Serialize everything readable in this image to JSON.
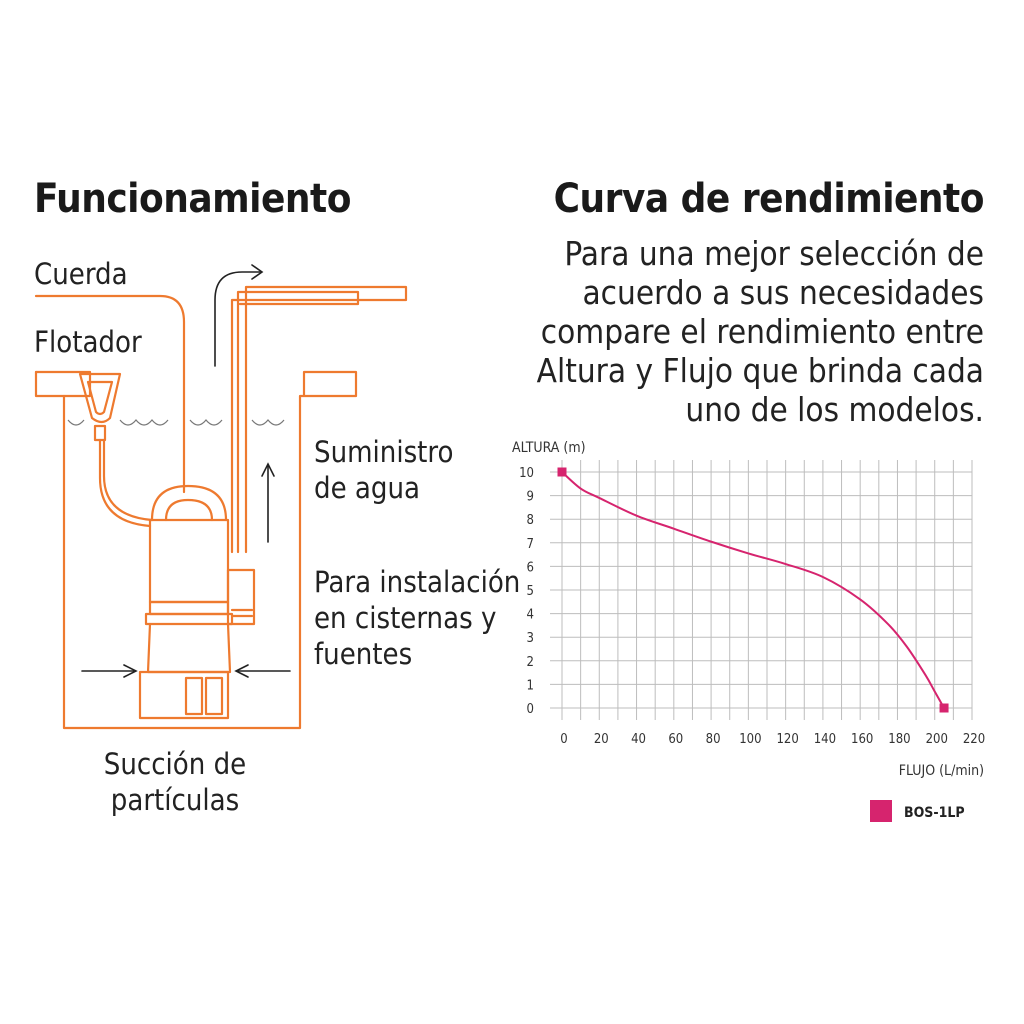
{
  "left": {
    "title": "Funcionamiento",
    "labels": {
      "cuerda": "Cuerda",
      "flotador": "Flotador",
      "suministro": [
        "Suministro",
        "de agua"
      ],
      "instalacion": [
        "Para instalación",
        "en cisternas y",
        "fuentes"
      ],
      "succion": [
        "Succión de",
        "partículas"
      ]
    }
  },
  "right": {
    "title": "Curva de rendimiento",
    "description": [
      "Para una mejor selección de",
      "acuerdo a sus necesidades",
      "compare el rendimiento entre",
      "Altura y Flujo que brinda cada",
      "uno de los modelos."
    ]
  },
  "colors": {
    "outline": "#ee7a2f",
    "curve": "#d6246e",
    "grid": "#bdbdbd"
  },
  "chart_data": {
    "type": "line",
    "ylabel": "ALTURA (m)",
    "xlabel": "FLUJO (L/min)",
    "xlim": [
      0,
      220
    ],
    "ylim": [
      0,
      10
    ],
    "x_ticks": [
      0,
      20,
      40,
      60,
      80,
      100,
      120,
      140,
      160,
      180,
      200,
      220
    ],
    "y_ticks": [
      0,
      1,
      2,
      3,
      4,
      5,
      6,
      7,
      8,
      9,
      10
    ],
    "grid": true,
    "legend_position": "bottom-right",
    "series": [
      {
        "name": "BOS-1LP",
        "x": [
          0,
          10,
          20,
          40,
          60,
          80,
          100,
          120,
          140,
          160,
          175,
          185,
          195,
          200,
          205
        ],
        "y": [
          10,
          9.3,
          8.9,
          8.15,
          7.6,
          7.05,
          6.55,
          6.1,
          5.55,
          4.6,
          3.55,
          2.6,
          1.4,
          0.7,
          0
        ]
      }
    ]
  }
}
